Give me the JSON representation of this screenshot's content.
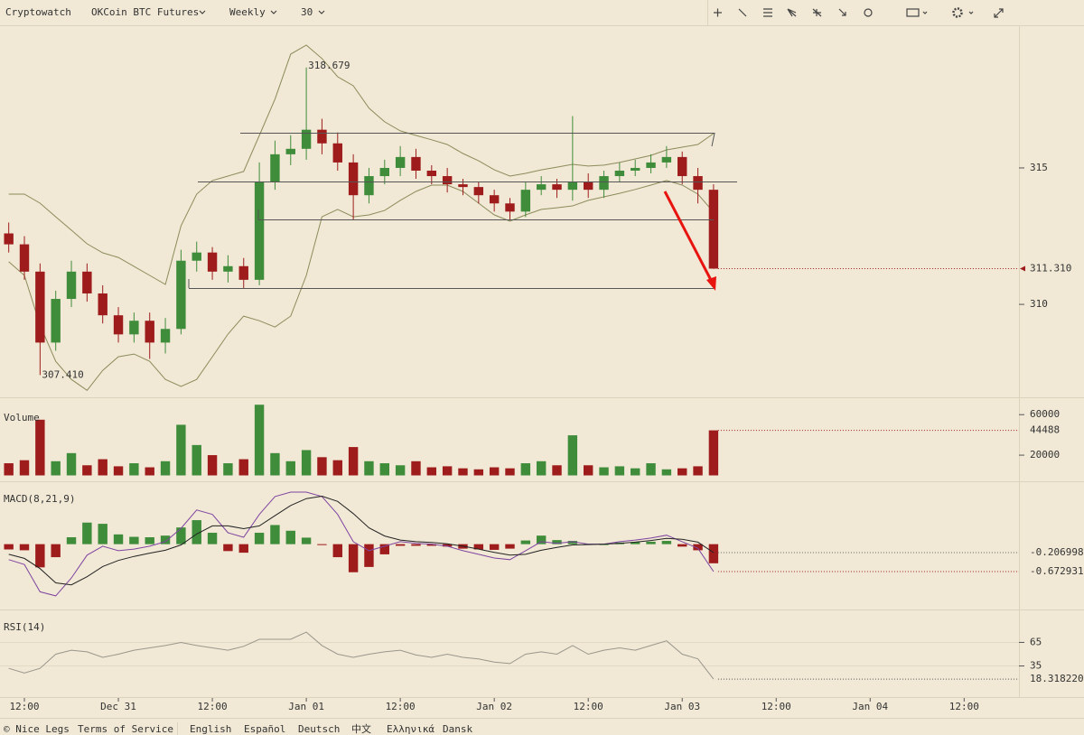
{
  "toolbar": {
    "brand": "Cryptowatch",
    "market": "OKCoin BTC Futures",
    "period": "Weekly",
    "interval": "30"
  },
  "chart_data": [
    {
      "type": "candlestick",
      "x": [
        "Dec 30 10:00",
        "Dec 30 12:00",
        "Dec 30 14:00",
        "Dec 30 16:00",
        "Dec 30 18:00",
        "Dec 30 20:00",
        "Dec 30 22:00",
        "Dec 31 00:00",
        "Dec 31 02:00",
        "Dec 31 04:00",
        "Dec 31 06:00",
        "Dec 31 08:00",
        "Dec 31 10:00",
        "Dec 31 12:00",
        "Dec 31 14:00",
        "Dec 31 16:00",
        "Dec 31 18:00",
        "Dec 31 20:00",
        "Dec 31 22:00",
        "Jan 01 00:00",
        "Jan 01 02:00",
        "Jan 01 04:00",
        "Jan 01 06:00",
        "Jan 01 08:00",
        "Jan 01 10:00",
        "Jan 01 12:00",
        "Jan 01 14:00",
        "Jan 01 16:00",
        "Jan 01 18:00",
        "Jan 01 20:00",
        "Jan 01 22:00",
        "Jan 02 00:00",
        "Jan 02 02:00",
        "Jan 02 04:00",
        "Jan 02 06:00",
        "Jan 02 08:00",
        "Jan 02 10:00",
        "Jan 02 12:00",
        "Jan 02 14:00",
        "Jan 02 16:00",
        "Jan 02 18:00",
        "Jan 02 20:00",
        "Jan 02 22:00",
        "Jan 03 00:00",
        "Jan 03 02:00",
        "Jan 03 04:00"
      ],
      "open": [
        312.6,
        312.2,
        311.2,
        308.6,
        310.2,
        311.2,
        310.4,
        309.6,
        308.9,
        309.4,
        308.6,
        309.1,
        311.6,
        311.9,
        311.2,
        311.4,
        310.9,
        314.5,
        315.5,
        315.7,
        316.4,
        315.9,
        315.2,
        314.0,
        314.7,
        315.0,
        315.4,
        314.9,
        314.7,
        314.4,
        314.3,
        314.0,
        313.7,
        313.4,
        314.2,
        314.4,
        314.2,
        314.5,
        314.2,
        314.7,
        314.9,
        315.0,
        315.2,
        315.4,
        314.7,
        314.2
      ],
      "high": [
        313.0,
        312.5,
        311.5,
        310.5,
        311.6,
        311.5,
        310.7,
        309.9,
        309.7,
        309.7,
        309.5,
        312.0,
        312.3,
        312.1,
        311.8,
        311.7,
        315.2,
        316.0,
        316.2,
        318.679,
        316.8,
        316.3,
        315.5,
        315.0,
        315.3,
        315.8,
        315.7,
        315.1,
        315.0,
        314.6,
        314.5,
        314.2,
        313.9,
        314.5,
        314.7,
        314.6,
        316.9,
        314.8,
        314.9,
        315.2,
        315.3,
        315.5,
        315.8,
        315.6,
        315.0,
        314.4
      ],
      "low": [
        311.9,
        310.9,
        307.41,
        308.3,
        309.9,
        310.1,
        309.3,
        308.6,
        308.6,
        308.0,
        308.2,
        308.9,
        311.2,
        310.9,
        310.8,
        310.6,
        310.7,
        314.2,
        315.1,
        315.3,
        315.5,
        314.9,
        313.1,
        313.7,
        314.4,
        314.7,
        314.6,
        314.4,
        314.1,
        314.0,
        313.7,
        313.4,
        313.1,
        313.2,
        314.0,
        313.9,
        313.8,
        313.9,
        313.9,
        314.5,
        314.7,
        314.8,
        315.0,
        314.4,
        313.7,
        311.3
      ],
      "close": [
        312.2,
        311.2,
        308.6,
        310.2,
        311.2,
        310.4,
        309.6,
        308.9,
        309.4,
        308.6,
        309.1,
        311.6,
        311.9,
        311.2,
        311.4,
        310.9,
        314.5,
        315.5,
        315.7,
        316.4,
        315.9,
        315.2,
        314.0,
        314.7,
        315.0,
        315.4,
        314.9,
        314.7,
        314.4,
        314.3,
        314.0,
        313.7,
        313.4,
        314.2,
        314.4,
        314.2,
        314.5,
        314.2,
        314.7,
        314.9,
        315.0,
        315.2,
        315.4,
        314.7,
        314.2,
        311.31
      ],
      "high_label": "318.679",
      "low_label": "307.410",
      "last_label": "311.310",
      "up_color": "#3f8c3b",
      "down_color": "#9e1c1c",
      "bands": {
        "color": "#8c8b5a",
        "upper": [
          314.04,
          314.04,
          313.71,
          313.21,
          312.72,
          312.22,
          311.89,
          311.72,
          311.39,
          311.06,
          310.73,
          312.88,
          314.04,
          314.54,
          314.7,
          314.87,
          316.19,
          317.52,
          319.17,
          319.5,
          319.01,
          318.34,
          318.01,
          317.19,
          316.69,
          316.36,
          316.19,
          316.03,
          315.86,
          315.53,
          315.26,
          314.93,
          314.7,
          314.8,
          314.93,
          315.03,
          315.13,
          315.07,
          315.1,
          315.2,
          315.33,
          315.46,
          315.66,
          315.76,
          315.86,
          316.26
        ],
        "lower": [
          311.56,
          311.06,
          309.24,
          307.91,
          307.25,
          306.85,
          307.58,
          308.08,
          308.18,
          307.91,
          307.25,
          306.99,
          307.25,
          308.08,
          308.91,
          309.57,
          309.4,
          309.17,
          309.57,
          311.06,
          313.21,
          313.48,
          313.21,
          313.28,
          313.44,
          313.81,
          314.14,
          314.37,
          314.37,
          314.14,
          313.71,
          313.28,
          313.05,
          313.28,
          313.48,
          313.54,
          313.61,
          313.81,
          313.94,
          314.07,
          314.21,
          314.37,
          314.54,
          314.37,
          314.04,
          313.38
        ]
      },
      "ylim": [
        306.76,
        319.83
      ],
      "yticks": [
        310,
        315
      ],
      "xlim": [
        "Dec 30 09:00",
        "Jan 04 19:00"
      ],
      "xticks": [
        {
          "value": "Dec 30 12:00",
          "label": "12:00"
        },
        {
          "value": "Dec 31 00:00",
          "label": "Dec 31"
        },
        {
          "value": "Dec 31 12:00",
          "label": "12:00"
        },
        {
          "value": "Jan 01 00:00",
          "label": "Jan 01"
        },
        {
          "value": "Jan 01 12:00",
          "label": "12:00"
        },
        {
          "value": "Jan 02 00:00",
          "label": "Jan 02"
        },
        {
          "value": "Jan 02 12:00",
          "label": "12:00"
        },
        {
          "value": "Jan 03 00:00",
          "label": "Jan 03"
        },
        {
          "value": "Jan 03 12:00",
          "label": "12:00"
        },
        {
          "value": "Jan 04 00:00",
          "label": "Jan 04"
        },
        {
          "value": "Jan 04 12:00",
          "label": "12:00"
        }
      ]
    },
    {
      "type": "bar",
      "title": "Volume",
      "values": [
        12000,
        15000,
        55000,
        14000,
        22000,
        10000,
        16000,
        9000,
        12000,
        8000,
        14000,
        50000,
        30000,
        20000,
        12000,
        16000,
        69800,
        22000,
        14000,
        25000,
        18000,
        15000,
        28000,
        14000,
        12000,
        10000,
        14000,
        8000,
        9000,
        7000,
        6000,
        8000,
        7000,
        12000,
        14000,
        10000,
        39600,
        10000,
        8000,
        9000,
        7000,
        12000,
        6000,
        7000,
        9000,
        44488
      ],
      "ylim": [
        0,
        70000
      ],
      "yticks": [
        20000,
        60000
      ]
    },
    {
      "type": "macd",
      "title": "MACD(8,21,9)",
      "series": [
        {
          "color": "#7f44a0",
          "values": [
            -0.38,
            -0.5,
            -1.17,
            -1.27,
            -0.83,
            -0.27,
            -0.05,
            -0.16,
            -0.12,
            -0.05,
            0.06,
            0.39,
            0.84,
            0.73,
            0.28,
            0.17,
            0.73,
            1.17,
            1.28,
            1.28,
            1.17,
            0.73,
            0.06,
            -0.16,
            -0.05,
            0.06,
            0.02,
            0,
            -0.05,
            -0.16,
            -0.25,
            -0.34,
            -0.38,
            -0.16,
            0.06,
            0.02,
            0.06,
            0,
            0,
            0.06,
            0.1,
            0.15,
            0.22,
            0.06,
            -0.1,
            -0.672931
          ]
        },
        {
          "color": "#222222",
          "values": [
            -0.25,
            -0.35,
            -0.6,
            -0.95,
            -1.0,
            -0.8,
            -0.55,
            -0.4,
            -0.3,
            -0.22,
            -0.15,
            -0.02,
            0.25,
            0.45,
            0.45,
            0.38,
            0.45,
            0.7,
            0.95,
            1.12,
            1.18,
            1.05,
            0.75,
            0.4,
            0.2,
            0.1,
            0.06,
            0.04,
            0.01,
            -0.05,
            -0.12,
            -0.2,
            -0.27,
            -0.25,
            -0.15,
            -0.08,
            -0.02,
            -0.01,
            0,
            0.02,
            0.05,
            0.09,
            0.14,
            0.12,
            0.05,
            -0.206998
          ]
        }
      ],
      "histogram": [
        -0.13,
        -0.15,
        -0.57,
        -0.32,
        0.17,
        0.53,
        0.5,
        0.24,
        0.18,
        0.17,
        0.21,
        0.41,
        0.59,
        0.28,
        -0.17,
        -0.21,
        0.28,
        0.47,
        0.33,
        0.16,
        -0.01,
        -0.32,
        -0.69,
        -0.56,
        -0.25,
        -0.04,
        -0.04,
        -0.04,
        -0.06,
        -0.11,
        -0.13,
        -0.14,
        -0.11,
        0.09,
        0.21,
        0.1,
        0.08,
        0.01,
        0,
        0.04,
        0.05,
        0.06,
        0.08,
        -0.06,
        -0.15,
        -0.47
      ],
      "ylim": [
        -1.45,
        1.39
      ]
    },
    {
      "type": "line",
      "title": "RSI(14)",
      "series": [
        {
          "color": "#9a968c",
          "values": [
            32,
            26,
            32,
            50,
            55,
            53,
            46,
            50,
            55,
            58,
            61,
            65,
            61,
            58,
            55,
            60,
            69,
            69,
            69,
            78,
            61,
            50,
            46,
            50,
            53,
            55,
            49,
            46,
            50,
            46,
            44,
            40,
            38,
            50,
            53,
            50,
            61,
            50,
            55,
            58,
            55,
            61,
            67,
            50,
            44,
            18.31822
          ]
        }
      ],
      "last_label": "18.318220",
      "ylim": [
        0,
        100
      ],
      "yticks": [
        35,
        65
      ],
      "grid": true
    }
  ],
  "footer": {
    "links": [
      "© Nice Legs",
      "Terms of Service",
      "English",
      "Español",
      "Deutsch",
      "中文",
      "Ελληνικά",
      "Dansk"
    ]
  }
}
